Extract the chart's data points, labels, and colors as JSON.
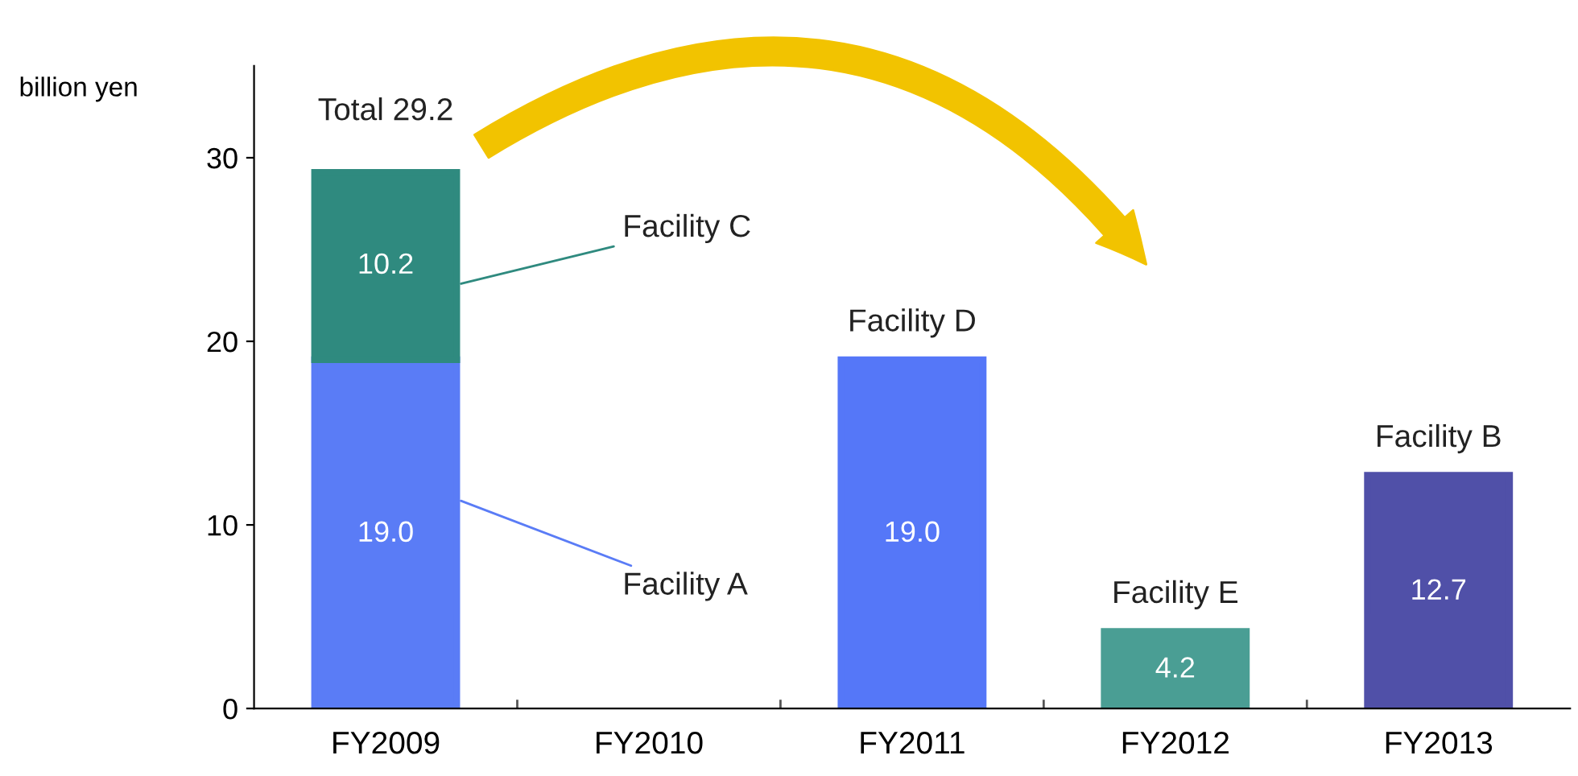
{
  "chart_data": {
    "type": "bar",
    "stacked": true,
    "ylabel": "billion yen",
    "categories": [
      "FY2009",
      "FY2010",
      "FY2011",
      "FY2012",
      "FY2013"
    ],
    "series": [
      {
        "name": "Facility A",
        "color": "#5a7cf6",
        "values": [
          19.0,
          null,
          null,
          null,
          null
        ],
        "value_labels": [
          "19.0",
          null,
          null,
          null,
          null
        ]
      },
      {
        "name": "Facility C",
        "color": "#2f8a7f",
        "values": [
          10.2,
          null,
          null,
          null,
          null
        ],
        "value_labels": [
          "10.2",
          null,
          null,
          null,
          null
        ]
      },
      {
        "name": "Facility D",
        "color": "#5577f8",
        "values": [
          null,
          null,
          19.0,
          null,
          null
        ],
        "value_labels": [
          null,
          null,
          "19.0",
          null,
          null
        ]
      },
      {
        "name": "Facility E",
        "color": "#4a9e94",
        "values": [
          null,
          null,
          null,
          4.2,
          null
        ],
        "value_labels": [
          null,
          null,
          null,
          "4.2",
          null
        ]
      },
      {
        "name": "Facility B",
        "color": "#5050a8",
        "values": [
          null,
          null,
          null,
          null,
          12.7
        ],
        "value_labels": [
          null,
          null,
          null,
          null,
          "12.7"
        ]
      }
    ],
    "totals": [
      "Total 29.2",
      null,
      null,
      null,
      null
    ],
    "ylim": [
      0,
      35
    ],
    "yticks": [
      0,
      10,
      20,
      30
    ],
    "grid": false,
    "legend": false
  }
}
